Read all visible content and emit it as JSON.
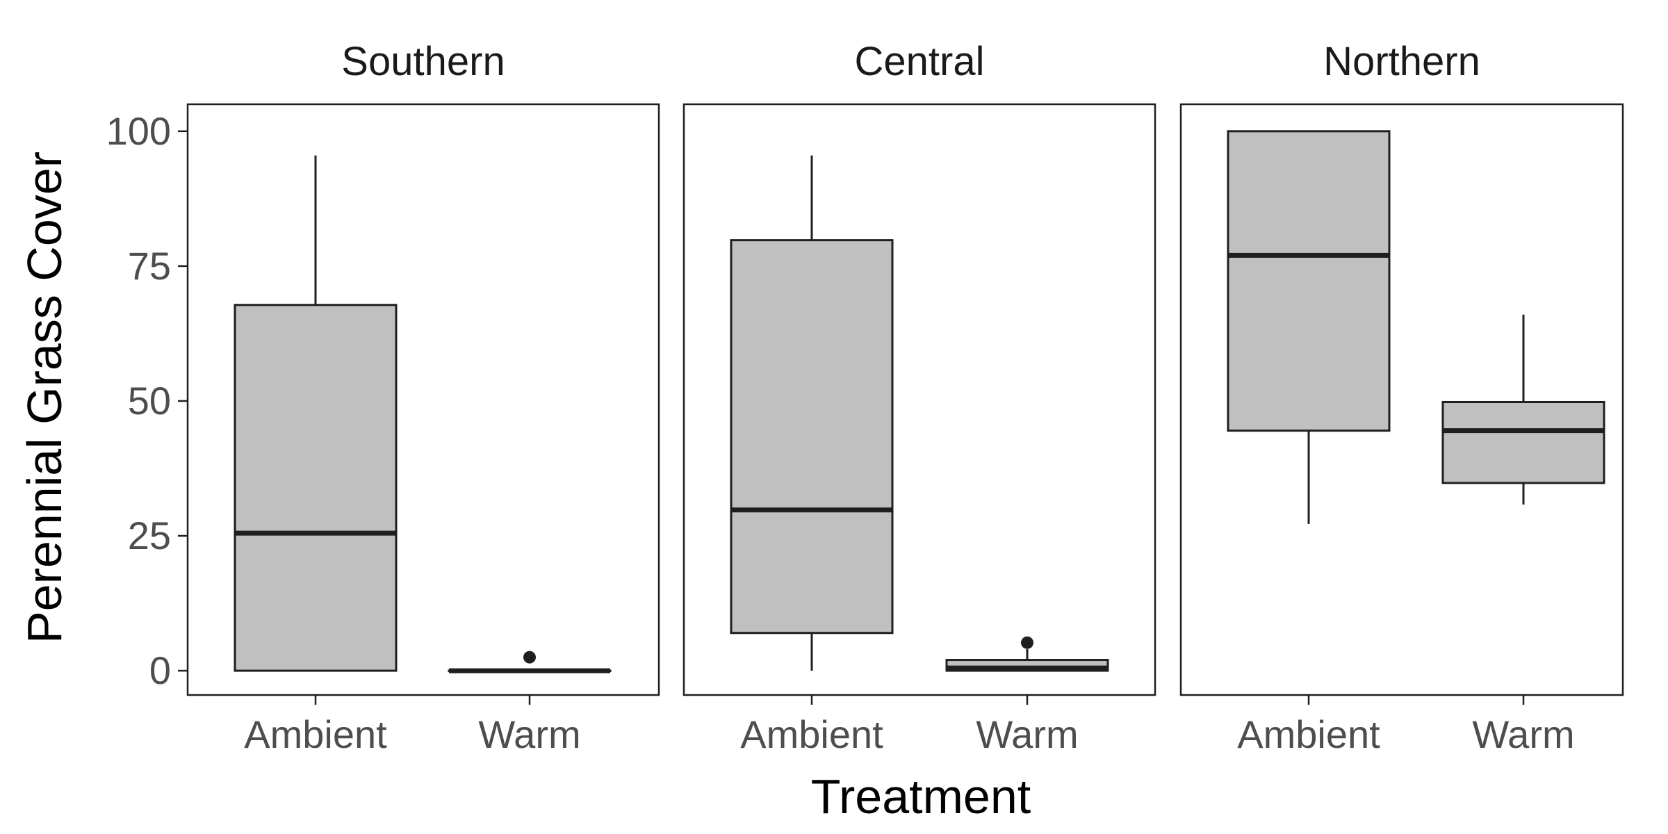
{
  "chart_data": {
    "type": "boxplot",
    "ylabel": "Perennial Grass Cover",
    "xlabel": "Treatment",
    "ylim": [
      -4.5,
      105
    ],
    "yticks": [
      0,
      25,
      50,
      75,
      100
    ],
    "categories": [
      "Ambient",
      "Warm"
    ],
    "grid": false,
    "fill_color": "#c0c0c0",
    "line_color": "#1f1f1f",
    "panels": [
      {
        "title": "Southern",
        "boxes": [
          {
            "category": "Ambient",
            "whisker_low": 0,
            "q1": 0,
            "median": 25.5,
            "q3": 67.8,
            "whisker_high": 95.5,
            "outliers": []
          },
          {
            "category": "Warm",
            "whisker_low": 0,
            "q1": 0,
            "median": 0,
            "q3": 0,
            "whisker_high": 0,
            "outliers": [
              2.5
            ]
          }
        ]
      },
      {
        "title": "Central",
        "boxes": [
          {
            "category": "Ambient",
            "whisker_low": 0,
            "q1": 7,
            "median": 29.8,
            "q3": 79.8,
            "whisker_high": 95.5,
            "outliers": []
          },
          {
            "category": "Warm",
            "whisker_low": 0,
            "q1": 0,
            "median": 0.5,
            "q3": 2,
            "whisker_high": 4,
            "outliers": [
              5.2
            ]
          }
        ]
      },
      {
        "title": "Northern",
        "boxes": [
          {
            "category": "Ambient",
            "whisker_low": 27.2,
            "q1": 44.5,
            "median": 77,
            "q3": 100,
            "whisker_high": 100,
            "outliers": []
          },
          {
            "category": "Warm",
            "whisker_low": 30.8,
            "q1": 34.8,
            "median": 44.5,
            "q3": 49.8,
            "whisker_high": 66,
            "outliers": []
          }
        ]
      }
    ]
  }
}
